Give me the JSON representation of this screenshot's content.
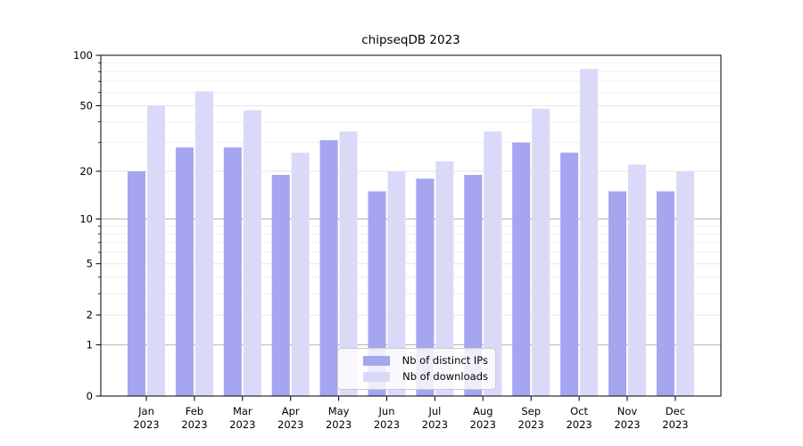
{
  "chart_data": {
    "type": "bar",
    "title": "chipseqDB 2023",
    "categories": [
      "Jan",
      "Feb",
      "Mar",
      "Apr",
      "May",
      "Jun",
      "Jul",
      "Aug",
      "Sep",
      "Oct",
      "Nov",
      "Dec"
    ],
    "x_tick_second_line": "2023",
    "series": [
      {
        "name": "Nb of distinct IPs",
        "color": "#a5a5f0",
        "values": [
          20,
          28,
          28,
          19,
          31,
          15,
          18,
          19,
          30,
          26,
          15,
          15
        ]
      },
      {
        "name": "Nb of downloads",
        "color": "#dadaf8",
        "values": [
          50,
          61,
          47,
          26,
          35,
          20,
          23,
          35,
          48,
          83,
          22,
          20
        ]
      }
    ],
    "y_scale": "log1p",
    "ylim": [
      0,
      100
    ],
    "y_ticks": [
      0,
      1,
      2,
      5,
      10,
      20,
      50,
      100
    ],
    "y_minor_ticks": [
      3,
      4,
      6,
      7,
      8,
      9,
      30,
      40,
      60,
      70,
      80,
      90
    ],
    "grid": "on",
    "legend_position": "lower center"
  },
  "colors": {
    "spine": "#000000",
    "grid_major_light": "#e7e7e7",
    "grid_minor": "#efefef",
    "grid_decade": "#b5b5b5",
    "tick_label": "#000000",
    "background": "#ffffff"
  }
}
